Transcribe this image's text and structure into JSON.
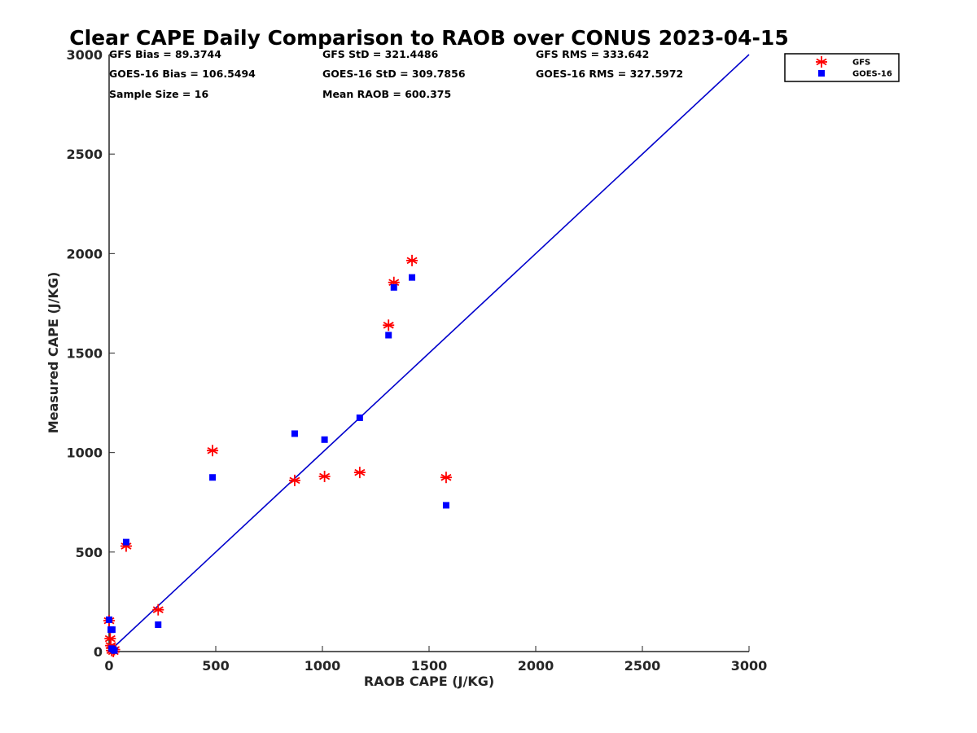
{
  "chart_data": {
    "type": "scatter",
    "title": "Clear CAPE Daily Comparison to RAOB over CONUS 2023-04-15",
    "xlabel": "RAOB CAPE (J/KG)",
    "ylabel": "Measured CAPE (J/KG)",
    "xlim": [
      0,
      3000
    ],
    "ylim": [
      0,
      3000
    ],
    "xticks": [
      0,
      500,
      1000,
      1500,
      2000,
      2500,
      3000
    ],
    "yticks": [
      0,
      500,
      1000,
      1500,
      2000,
      2500,
      3000
    ],
    "grid": false,
    "legend_position": "outside-top-right",
    "reference_line": {
      "x": [
        0,
        3000
      ],
      "y": [
        0,
        3000
      ],
      "color": "#0000cc"
    },
    "stats": [
      "GFS Bias = 89.3744",
      "GFS StD = 321.4486",
      "GFS RMS = 333.642",
      "GOES-16 Bias = 106.5494",
      "GOES-16 StD = 309.7856",
      "GOES-16 RMS = 327.5972",
      "Sample Size = 16",
      "Mean RAOB = 600.375"
    ],
    "series": [
      {
        "name": "GFS",
        "marker": "asterisk",
        "color": "#ff0000",
        "points": [
          [
            0,
            155
          ],
          [
            5,
            65
          ],
          [
            8,
            30
          ],
          [
            12,
            5
          ],
          [
            20,
            0
          ],
          [
            80,
            530
          ],
          [
            230,
            210
          ],
          [
            485,
            1010
          ],
          [
            870,
            860
          ],
          [
            1010,
            880
          ],
          [
            1175,
            900
          ],
          [
            1310,
            1640
          ],
          [
            1335,
            1855
          ],
          [
            1420,
            1965
          ],
          [
            1580,
            875
          ],
          [
            25,
            10
          ]
        ]
      },
      {
        "name": "GOES-16",
        "marker": "square",
        "color": "#0000ff",
        "points": [
          [
            0,
            160
          ],
          [
            8,
            110
          ],
          [
            12,
            15
          ],
          [
            15,
            110
          ],
          [
            20,
            10
          ],
          [
            80,
            550
          ],
          [
            230,
            135
          ],
          [
            485,
            875
          ],
          [
            870,
            1095
          ],
          [
            1010,
            1065
          ],
          [
            1175,
            1175
          ],
          [
            1310,
            1590
          ],
          [
            1335,
            1830
          ],
          [
            1420,
            1880
          ],
          [
            1580,
            735
          ],
          [
            25,
            5
          ]
        ]
      }
    ]
  }
}
